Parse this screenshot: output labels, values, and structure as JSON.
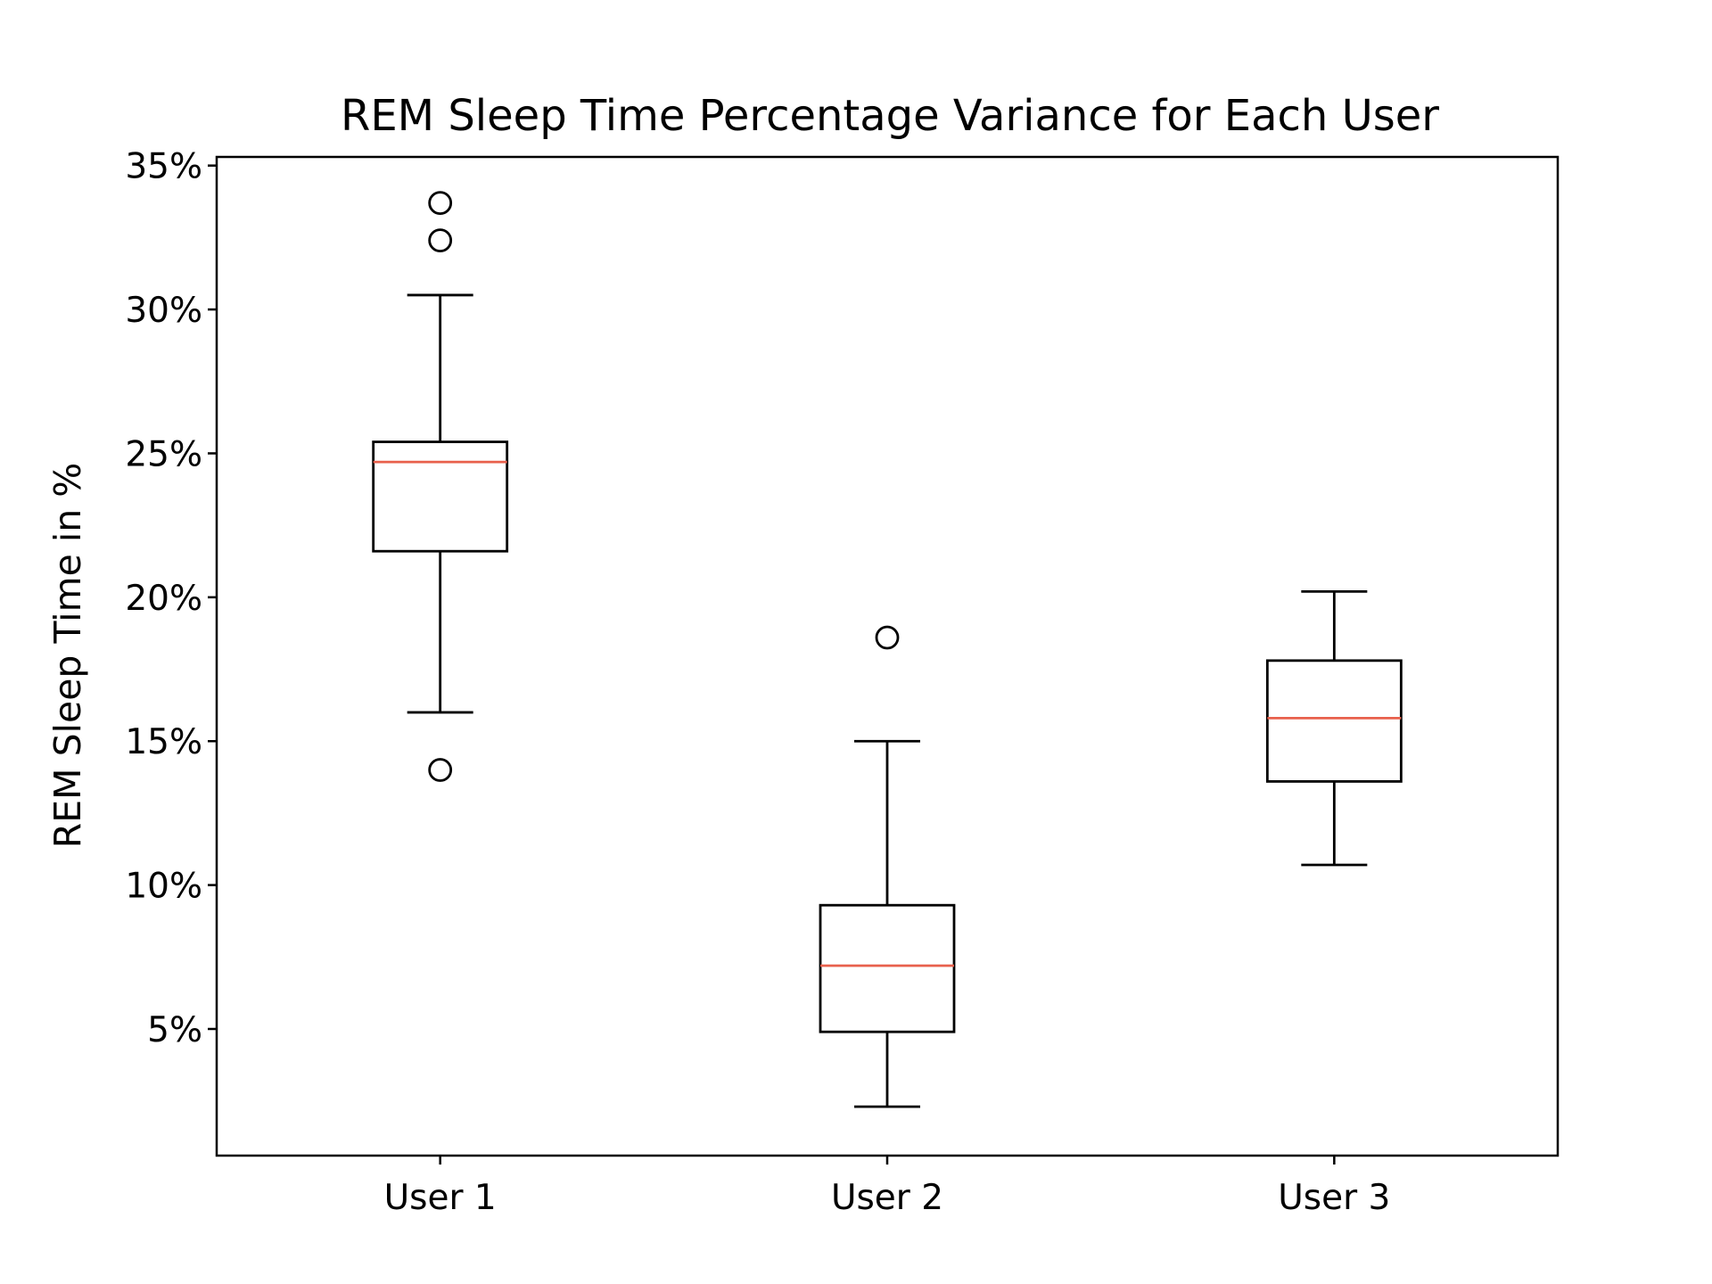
{
  "chart_data": {
    "type": "box",
    "title": "REM Sleep Time Percentage Variance for Each User",
    "xlabel": "",
    "ylabel": "REM Sleep Time in %",
    "ylim": [
      0.6,
      35.3
    ],
    "y_ticks": [
      {
        "value": 5,
        "label": "5%"
      },
      {
        "value": 10,
        "label": "10%"
      },
      {
        "value": 15,
        "label": "15%"
      },
      {
        "value": 20,
        "label": "20%"
      },
      {
        "value": 25,
        "label": "25%"
      },
      {
        "value": 30,
        "label": "30%"
      },
      {
        "value": 35,
        "label": "35%"
      }
    ],
    "categories": [
      "User 1",
      "User 2",
      "User 3"
    ],
    "boxes": [
      {
        "category": "User 1",
        "whisker_low": 16.0,
        "q1": 21.6,
        "median": 24.7,
        "q3": 25.4,
        "whisker_high": 30.5,
        "outliers": [
          14.0,
          32.4,
          33.7
        ]
      },
      {
        "category": "User 2",
        "whisker_low": 2.3,
        "q1": 4.9,
        "median": 7.2,
        "q3": 9.3,
        "whisker_high": 15.0,
        "outliers": [
          18.6
        ]
      },
      {
        "category": "User 3",
        "whisker_low": 10.7,
        "q1": 13.6,
        "median": 15.8,
        "q3": 17.8,
        "whisker_high": 20.2,
        "outliers": []
      }
    ],
    "grid": false,
    "legend": "none",
    "colors": {
      "box": "#000000",
      "median": "#e8604c",
      "outlier": "#000000"
    }
  }
}
